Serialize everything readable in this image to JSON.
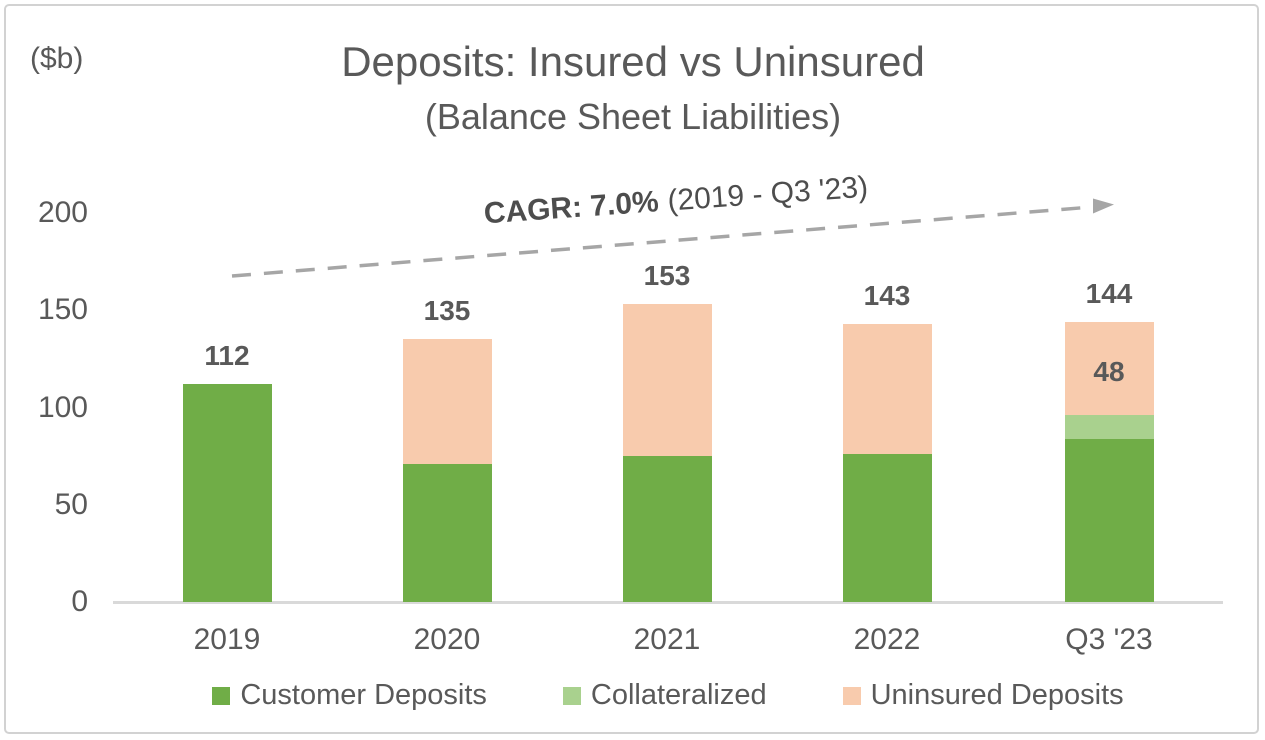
{
  "card": {
    "unit_label": "($b)",
    "title": "Deposits: Insured vs Uninsured",
    "subtitle": "(Balance Sheet Liabilities)"
  },
  "annotation": {
    "bold_text": "CAGR: 7.0%",
    "regular_text": "(2019 - Q3 '23)"
  },
  "colors": {
    "customer": "#70AD47",
    "collateralized": "#A9D18E",
    "uninsured": "#F8CBAD",
    "text": "#595959",
    "axis_line": "#D9D9D9",
    "arrow": "#A6A6A6",
    "border": "#D2D2D2"
  },
  "chart_data": {
    "type": "bar",
    "stacked": true,
    "title": "Deposits: Insured vs Uninsured",
    "subtitle": "(Balance Sheet Liabilities)",
    "ylabel": "($b)",
    "xlabel": "",
    "categories": [
      "2019",
      "2020",
      "2021",
      "2022",
      "Q3 '23"
    ],
    "series": [
      {
        "name": "Customer Deposits",
        "color_key": "customer",
        "values": [
          112,
          71,
          75,
          76,
          84
        ]
      },
      {
        "name": "Collateralized",
        "color_key": "collateralized",
        "values": [
          0,
          0,
          0,
          0,
          12
        ]
      },
      {
        "name": "Uninsured Deposits",
        "color_key": "uninsured",
        "values": [
          0,
          64,
          78,
          67,
          48
        ]
      }
    ],
    "totals": [
      112,
      135,
      153,
      143,
      144
    ],
    "total_labels": [
      "112",
      "135",
      "153",
      "143",
      "144"
    ],
    "segment_labels": [
      {
        "category": "Q3 '23",
        "series": "Uninsured Deposits",
        "text": "48"
      }
    ],
    "yticks": [
      0,
      50,
      100,
      150,
      200
    ],
    "ytick_labels": [
      "0",
      "50",
      "100",
      "150",
      "200"
    ],
    "ylim": [
      0,
      200
    ],
    "grid": false,
    "legend_position": "bottom",
    "annotation": "CAGR: 7.0% (2019 - Q3 '23)"
  },
  "legend": {
    "items": [
      {
        "label": "Customer Deposits",
        "color_key": "customer"
      },
      {
        "label": "Collateralized",
        "color_key": "collateralized"
      },
      {
        "label": "Uninsured Deposits",
        "color_key": "uninsured"
      }
    ]
  }
}
